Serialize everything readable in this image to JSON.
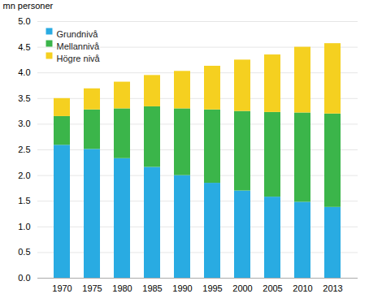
{
  "chart_data": {
    "type": "bar",
    "stacked": true,
    "categories": [
      "1970",
      "1975",
      "1980",
      "1985",
      "1990",
      "1995",
      "2000",
      "2005",
      "2010",
      "2013"
    ],
    "series": [
      {
        "name": "Grundnivå",
        "color": "#29ABE2",
        "values": [
          2.59,
          2.51,
          2.33,
          2.16,
          2.0,
          1.85,
          1.7,
          1.58,
          1.48,
          1.38
        ]
      },
      {
        "name": "Mellannivå",
        "color": "#3BB54A",
        "values": [
          0.56,
          0.77,
          0.97,
          1.18,
          1.3,
          1.43,
          1.55,
          1.65,
          1.74,
          1.82
        ]
      },
      {
        "name": "Högre nivå",
        "color": "#F5D020",
        "values": [
          0.35,
          0.41,
          0.52,
          0.61,
          0.73,
          0.85,
          1.0,
          1.12,
          1.28,
          1.37
        ]
      }
    ],
    "ylabel": "mn personer",
    "ylim": [
      0.0,
      5.0
    ],
    "yticks": [
      {
        "value": 0,
        "label": "0.0"
      },
      0.5,
      {
        "value": 1,
        "label": "1.0"
      },
      1.5,
      {
        "value": 2,
        "label": "2.0"
      },
      2.5,
      {
        "value": 3,
        "label": "3.0"
      },
      3.5,
      {
        "value": 4,
        "label": "4.0"
      },
      4.5,
      {
        "value": 5,
        "label": "5.0"
      }
    ],
    "grid": true,
    "legend": "upper left"
  }
}
